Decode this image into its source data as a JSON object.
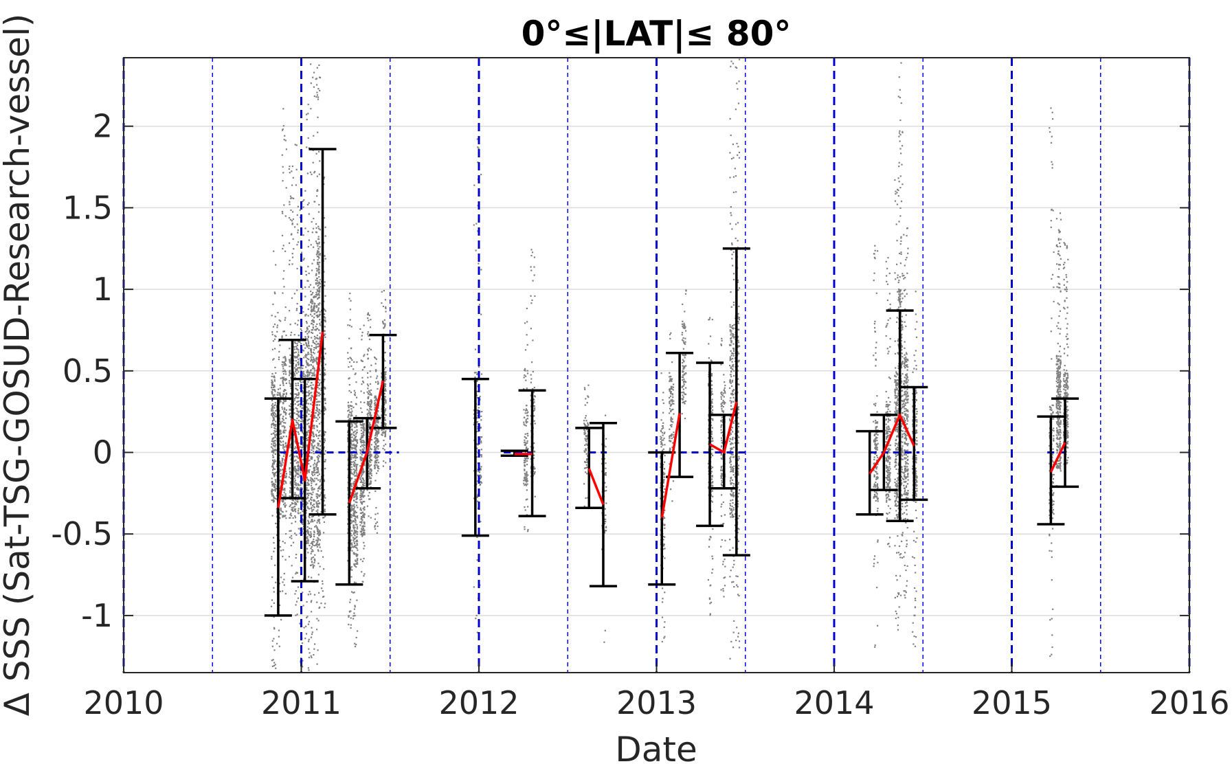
{
  "chart_data": {
    "type": "scatter",
    "title": "0°≤|LAT|≤ 80°",
    "xlabel": "Date",
    "ylabel": "Δ SSS (Sat-TSG-GOSUD-Research-vessel)",
    "xlim": [
      2010,
      2016
    ],
    "ylim": [
      -1.35,
      2.42
    ],
    "xticks": [
      "2010",
      "2011",
      "2012",
      "2013",
      "2014",
      "2015",
      "2016"
    ],
    "yticks": [
      {
        "value": 2,
        "label": "2"
      },
      {
        "value": 1.5,
        "label": "1.5"
      },
      {
        "value": 1,
        "label": "1"
      },
      {
        "value": 0.5,
        "label": "0.5"
      },
      {
        "value": 0,
        "label": "0"
      },
      {
        "value": -0.5,
        "label": "-0.5"
      },
      {
        "value": -1,
        "label": "-1"
      }
    ],
    "grid": "horizontal",
    "colors": {
      "points": "#808080",
      "mean_line": "#ff0000",
      "error_bars": "#000000",
      "zero_line": "#0000cc",
      "year_lines": "#0000cc",
      "half_year_lines": "#0000ff",
      "grid": "#dcdcdc",
      "axes": "#262626"
    },
    "year_lines": [
      2010,
      2011,
      2012,
      2013,
      2014,
      2015,
      2016
    ],
    "half_year_lines": [
      2010.5,
      2011.5,
      2012.5,
      2013.5,
      2014.5,
      2015.5
    ],
    "zero_segments": [
      [
        2010.88,
        2011.55
      ],
      [
        2012.14,
        2012.3
      ],
      [
        2012.62,
        2012.72
      ],
      [
        2013.0,
        2013.5
      ],
      [
        2014.2,
        2014.48
      ],
      [
        2015.2,
        2015.3
      ]
    ],
    "scatter_columns": [
      {
        "x": 2010.84,
        "ymin": -1.35,
        "ymax": 1.25,
        "lo": -0.3,
        "hi": 0.5,
        "dense": 1.0
      },
      {
        "x": 2010.87,
        "ymin": -1.2,
        "ymax": 0.9,
        "lo": -0.4,
        "hi": 0.4,
        "dense": 0.8
      },
      {
        "x": 2010.9,
        "ymin": -0.9,
        "ymax": 2.15,
        "lo": -0.4,
        "hi": 0.6,
        "dense": 0.9
      },
      {
        "x": 2010.94,
        "ymin": -0.8,
        "ymax": 1.8,
        "lo": -0.4,
        "hi": 0.6,
        "dense": 0.9
      },
      {
        "x": 2010.97,
        "ymin": -1.0,
        "ymax": 1.9,
        "lo": -0.4,
        "hi": 0.7,
        "dense": 1.0
      },
      {
        "x": 2011.0,
        "ymin": -1.35,
        "ymax": 1.7,
        "lo": -0.5,
        "hi": 0.6,
        "dense": 1.0
      },
      {
        "x": 2011.03,
        "ymin": -1.35,
        "ymax": 2.3,
        "lo": -0.6,
        "hi": 0.8,
        "dense": 1.2
      },
      {
        "x": 2011.06,
        "ymin": -1.3,
        "ymax": 2.42,
        "lo": -0.7,
        "hi": 1.0,
        "dense": 1.4
      },
      {
        "x": 2011.09,
        "ymin": -1.3,
        "ymax": 2.42,
        "lo": -0.6,
        "hi": 1.4,
        "dense": 1.6
      },
      {
        "x": 2011.12,
        "ymin": -1.0,
        "ymax": 1.7,
        "lo": -0.4,
        "hi": 0.9,
        "dense": 0.8
      },
      {
        "x": 2011.27,
        "ymin": -1.1,
        "ymax": 1.0,
        "lo": -0.6,
        "hi": 0.3,
        "dense": 1.2
      },
      {
        "x": 2011.3,
        "ymin": -1.2,
        "ymax": 0.6,
        "lo": -0.7,
        "hi": 0.2,
        "dense": 1.1
      },
      {
        "x": 2011.34,
        "ymin": -0.8,
        "ymax": 0.8,
        "lo": -0.5,
        "hi": 0.2,
        "dense": 1.0
      },
      {
        "x": 2011.38,
        "ymin": -0.4,
        "ymax": 0.9,
        "lo": -0.2,
        "hi": 0.4,
        "dense": 0.9
      },
      {
        "x": 2011.42,
        "ymin": -0.5,
        "ymax": 0.6,
        "lo": -0.1,
        "hi": 0.35,
        "dense": 0.8
      },
      {
        "x": 2011.46,
        "ymin": -0.1,
        "ymax": 1.0,
        "lo": 0.1,
        "hi": 0.5,
        "dense": 0.8
      },
      {
        "x": 2011.98,
        "ymin": -1.1,
        "ymax": 2.4,
        "lo": -0.3,
        "hi": 0.5,
        "dense": 0.3
      },
      {
        "x": 2012.0,
        "ymin": -0.9,
        "ymax": 1.9,
        "lo": -0.2,
        "hi": 0.3,
        "dense": 0.25
      },
      {
        "x": 2012.26,
        "ymin": -0.5,
        "ymax": 0.9,
        "lo": -0.2,
        "hi": 0.3,
        "dense": 0.5
      },
      {
        "x": 2012.3,
        "ymin": -0.3,
        "ymax": 1.3,
        "lo": -0.15,
        "hi": 0.4,
        "dense": 0.4
      },
      {
        "x": 2012.6,
        "ymin": -0.35,
        "ymax": 0.45,
        "lo": -0.1,
        "hi": 0.2,
        "dense": 0.3
      },
      {
        "x": 2012.7,
        "ymin": -1.3,
        "ymax": 0.28,
        "lo": -0.5,
        "hi": 0.1,
        "dense": 0.3
      },
      {
        "x": 2013.03,
        "ymin": -1.2,
        "ymax": 0.5,
        "lo": -0.6,
        "hi": 0.2,
        "dense": 0.6
      },
      {
        "x": 2013.08,
        "ymin": -0.3,
        "ymax": 0.8,
        "lo": 0.0,
        "hi": 0.5,
        "dense": 0.4
      },
      {
        "x": 2013.15,
        "ymin": 0.2,
        "ymax": 1.0,
        "lo": 0.3,
        "hi": 0.8,
        "dense": 0.35
      },
      {
        "x": 2013.3,
        "ymin": -1.0,
        "ymax": 0.9,
        "lo": -0.3,
        "hi": 0.5,
        "dense": 0.7
      },
      {
        "x": 2013.37,
        "ymin": -0.9,
        "ymax": 0.8,
        "lo": -0.2,
        "hi": 0.4,
        "dense": 0.6
      },
      {
        "x": 2013.42,
        "ymin": -1.3,
        "ymax": 2.42,
        "lo": -0.4,
        "hi": 0.8,
        "dense": 1.0
      },
      {
        "x": 2013.45,
        "ymin": -1.3,
        "ymax": 2.42,
        "lo": -0.5,
        "hi": 0.9,
        "dense": 1.0
      },
      {
        "x": 2014.23,
        "ymin": -1.2,
        "ymax": 1.3,
        "lo": -0.3,
        "hi": 0.2,
        "dense": 0.6
      },
      {
        "x": 2014.3,
        "ymin": -0.6,
        "ymax": 1.2,
        "lo": -0.3,
        "hi": 0.3,
        "dense": 0.8
      },
      {
        "x": 2014.35,
        "ymin": -1.1,
        "ymax": 1.7,
        "lo": -0.4,
        "hi": 0.5,
        "dense": 1.0
      },
      {
        "x": 2014.37,
        "ymin": -1.0,
        "ymax": 2.42,
        "lo": -0.4,
        "hi": 1.0,
        "dense": 1.3
      },
      {
        "x": 2014.4,
        "ymin": -0.9,
        "ymax": 1.5,
        "lo": -0.3,
        "hi": 0.6,
        "dense": 1.1
      },
      {
        "x": 2014.45,
        "ymin": -1.25,
        "ymax": 1.0,
        "lo": -0.3,
        "hi": 0.4,
        "dense": 0.9
      },
      {
        "x": 2015.22,
        "ymin": -1.3,
        "ymax": 2.22,
        "lo": -0.4,
        "hi": 0.3,
        "dense": 0.6
      },
      {
        "x": 2015.26,
        "ymin": -0.2,
        "ymax": 1.5,
        "lo": -0.1,
        "hi": 0.6,
        "dense": 1.2
      },
      {
        "x": 2015.3,
        "ymin": -0.1,
        "ymax": 1.3,
        "lo": 0.0,
        "hi": 0.5,
        "dense": 0.9
      }
    ],
    "error_bars": [
      {
        "x": 2010.87,
        "low": -1.0,
        "high": 0.33
      },
      {
        "x": 2010.95,
        "low": -0.28,
        "high": 0.69
      },
      {
        "x": 2011.02,
        "low": -0.79,
        "high": 0.45
      },
      {
        "x": 2011.12,
        "low": -0.38,
        "high": 1.86
      },
      {
        "x": 2011.27,
        "low": -0.81,
        "high": 0.19
      },
      {
        "x": 2011.37,
        "low": -0.22,
        "high": 0.21
      },
      {
        "x": 2011.46,
        "low": 0.15,
        "high": 0.72
      },
      {
        "x": 2011.98,
        "low": -0.51,
        "high": 0.45
      },
      {
        "x": 2012.2,
        "low": -0.02,
        "high": 0.01
      },
      {
        "x": 2012.3,
        "low": -0.39,
        "high": 0.38
      },
      {
        "x": 2012.62,
        "low": -0.34,
        "high": 0.15
      },
      {
        "x": 2012.7,
        "low": -0.82,
        "high": 0.18
      },
      {
        "x": 2013.03,
        "low": -0.81,
        "high": 0.0
      },
      {
        "x": 2013.13,
        "low": -0.15,
        "high": 0.61
      },
      {
        "x": 2013.3,
        "low": -0.45,
        "high": 0.55
      },
      {
        "x": 2013.38,
        "low": -0.22,
        "high": 0.23
      },
      {
        "x": 2013.45,
        "low": -0.63,
        "high": 1.25
      },
      {
        "x": 2014.2,
        "low": -0.38,
        "high": 0.13
      },
      {
        "x": 2014.28,
        "low": -0.23,
        "high": 0.23
      },
      {
        "x": 2014.37,
        "low": -0.42,
        "high": 0.87
      },
      {
        "x": 2014.45,
        "low": -0.29,
        "high": 0.4
      },
      {
        "x": 2015.22,
        "low": -0.44,
        "high": 0.22
      },
      {
        "x": 2015.3,
        "low": -0.21,
        "high": 0.33
      }
    ],
    "mean_segments": [
      [
        [
          2010.87,
          -0.34
        ],
        [
          2010.95,
          0.2
        ],
        [
          2011.02,
          -0.17
        ],
        [
          2011.12,
          0.74
        ]
      ],
      [
        [
          2011.27,
          -0.31
        ],
        [
          2011.37,
          0.0
        ],
        [
          2011.46,
          0.44
        ]
      ],
      [
        [
          2012.2,
          -0.01
        ],
        [
          2012.3,
          -0.01
        ]
      ],
      [
        [
          2012.62,
          -0.1
        ],
        [
          2012.7,
          -0.32
        ]
      ],
      [
        [
          2013.03,
          -0.4
        ],
        [
          2013.13,
          0.24
        ]
      ],
      [
        [
          2013.3,
          0.05
        ],
        [
          2013.38,
          0.0
        ],
        [
          2013.45,
          0.31
        ]
      ],
      [
        [
          2014.2,
          -0.13
        ],
        [
          2014.28,
          0.0
        ],
        [
          2014.37,
          0.23
        ],
        [
          2014.45,
          0.04
        ]
      ],
      [
        [
          2015.22,
          -0.12
        ],
        [
          2015.3,
          0.06
        ]
      ]
    ]
  }
}
